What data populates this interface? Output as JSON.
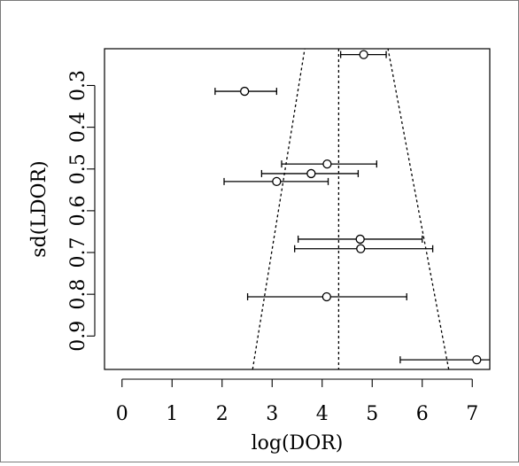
{
  "chart_data": {
    "type": "scatter",
    "title": "",
    "xlabel": "log(DOR)",
    "ylabel": "sd(LDOR)",
    "xlim": [
      -0.35,
      7.35
    ],
    "ylim": [
      0.98,
      0.212
    ],
    "x_ticks": [
      0,
      1,
      2,
      3,
      4,
      5,
      6,
      7
    ],
    "x_tick_labels": [
      "0",
      "1",
      "2",
      "3",
      "4",
      "5",
      "6",
      "7"
    ],
    "y_ticks": [
      0.3,
      0.4,
      0.5,
      0.6,
      0.7,
      0.8,
      0.9
    ],
    "y_tick_labels": [
      "0.3",
      "0.4",
      "0.5",
      "0.6",
      "0.7",
      "0.8",
      "0.9"
    ],
    "grid": false,
    "legend": "none",
    "points": [
      {
        "x": 4.83,
        "y": 0.226,
        "lo": 4.37,
        "hi": 5.28
      },
      {
        "x": 2.45,
        "y": 0.314,
        "lo": 1.86,
        "hi": 3.09
      },
      {
        "x": 4.1,
        "y": 0.488,
        "lo": 3.19,
        "hi": 5.09
      },
      {
        "x": 3.78,
        "y": 0.511,
        "lo": 2.79,
        "hi": 4.72
      },
      {
        "x": 3.09,
        "y": 0.53,
        "lo": 2.04,
        "hi": 4.12
      },
      {
        "x": 4.76,
        "y": 0.668,
        "lo": 3.52,
        "hi": 6.0
      },
      {
        "x": 4.77,
        "y": 0.691,
        "lo": 3.45,
        "hi": 6.21
      },
      {
        "x": 4.09,
        "y": 0.806,
        "lo": 2.51,
        "hi": 5.69
      },
      {
        "x": 7.09,
        "y": 0.957,
        "lo": 5.56,
        "hi": 8.2
      }
    ],
    "pooled_estimate": 4.33,
    "funnel_lines": [
      {
        "x1": 2.61,
        "y1": 0.98,
        "x2": 3.94,
        "y2": 0.0
      },
      {
        "x1": 6.53,
        "y1": 0.98,
        "x2": 4.98,
        "y2": 0.0
      }
    ]
  }
}
